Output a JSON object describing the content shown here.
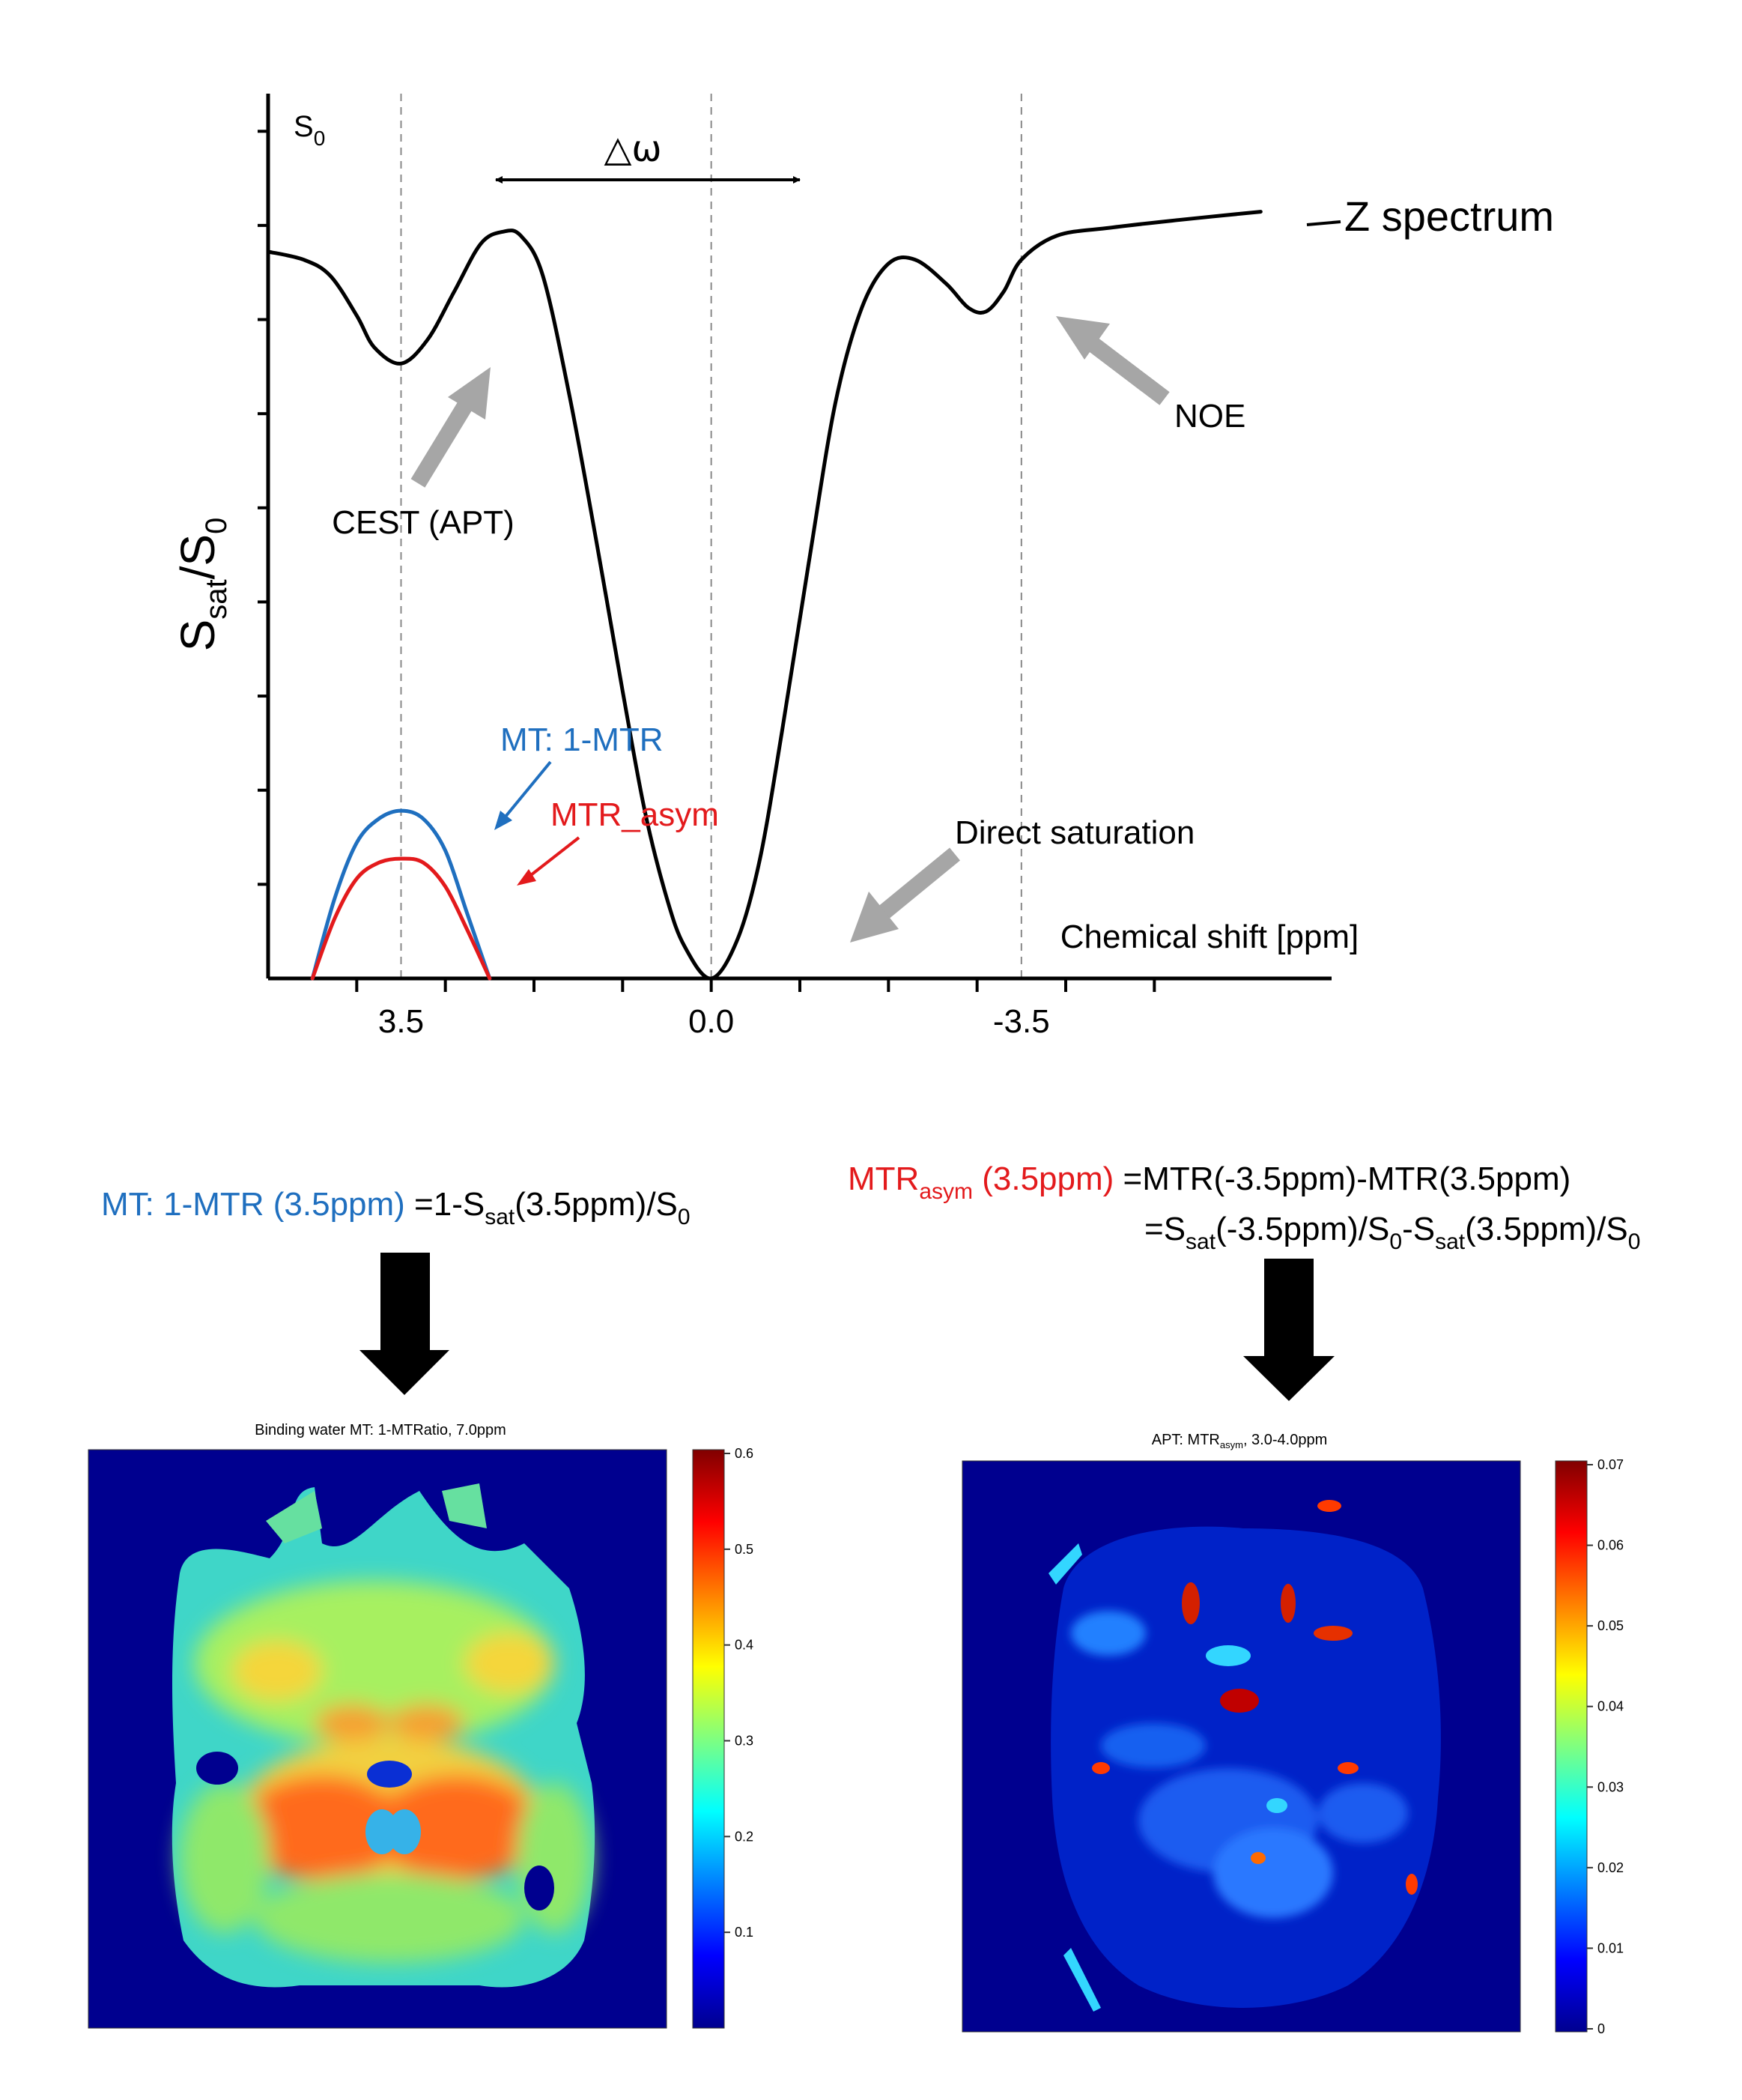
{
  "chart_data": {
    "type": "line",
    "title": "",
    "xlabel": "Chemical shift [ppm]",
    "ylabel_main": "S",
    "ylabel_sub1": "sat",
    "ylabel_mid": "/S",
    "ylabel_sub2": "0",
    "y_top_label_main": "S",
    "y_top_label_sub": "0",
    "x_axis_direction": "reversed",
    "xlim": [
      5.0,
      -7.0
    ],
    "ylim": [
      0,
      1.05
    ],
    "x_tick_labels": [
      {
        "x": 3.5,
        "label": "3.5"
      },
      {
        "x": 0.0,
        "label": "0.0"
      },
      {
        "x": -3.5,
        "label": "-3.5"
      }
    ],
    "x_ticks": [
      4.0,
      3.0,
      2.0,
      1.0,
      0.0,
      -1.0,
      -2.0,
      -3.0,
      -4.0,
      -5.0
    ],
    "reference_lines_ppm": [
      3.5,
      0.0,
      -3.5
    ],
    "delta_omega_label": "△ω",
    "series": [
      {
        "name": "Z spectrum",
        "color": "#000000",
        "x": [
          5.0,
          4.6,
          4.3,
          4.0,
          3.8,
          3.5,
          3.2,
          2.9,
          2.6,
          2.35,
          2.15,
          1.9,
          1.6,
          1.3,
          1.0,
          0.75,
          0.5,
          0.3,
          0.0,
          -0.3,
          -0.55,
          -0.8,
          -1.1,
          -1.4,
          -1.7,
          -2.0,
          -2.3,
          -2.65,
          -2.9,
          -3.1,
          -3.3,
          -3.5,
          -3.9,
          -4.5,
          -5.3,
          -6.2
        ],
        "y": [
          0.91,
          0.9,
          0.88,
          0.83,
          0.79,
          0.77,
          0.8,
          0.86,
          0.92,
          0.935,
          0.93,
          0.88,
          0.73,
          0.55,
          0.36,
          0.21,
          0.1,
          0.04,
          0.0,
          0.05,
          0.15,
          0.31,
          0.52,
          0.72,
          0.84,
          0.895,
          0.9,
          0.87,
          0.84,
          0.835,
          0.86,
          0.9,
          0.93,
          0.94,
          0.95,
          0.96
        ]
      },
      {
        "name": "MT: 1-MTR",
        "color": "#1f6fbf",
        "x": [
          4.5,
          4.25,
          4.0,
          3.75,
          3.5,
          3.25,
          3.0,
          2.75,
          2.5
        ],
        "y": [
          0.0,
          0.1,
          0.17,
          0.2,
          0.21,
          0.2,
          0.16,
          0.08,
          0.0
        ]
      },
      {
        "name": "MTR_asym",
        "color": "#e31a1c",
        "x": [
          4.5,
          4.25,
          4.0,
          3.75,
          3.5,
          3.25,
          3.0,
          2.75,
          2.5
        ],
        "y": [
          0.0,
          0.075,
          0.125,
          0.145,
          0.15,
          0.145,
          0.115,
          0.06,
          0.0
        ]
      }
    ],
    "annotations": {
      "z_spectrum": "Z spectrum",
      "cest": "CEST (APT)",
      "noe": "NOE",
      "direct_saturation": "Direct saturation",
      "mt_label": "MT: 1-MTR",
      "mtr_asym_label": "MTR_asym"
    }
  },
  "formulas": {
    "mt": {
      "lhs": "MT: 1-MTR (3.5ppm)",
      "rhs_a": " =1-S",
      "rhs_sub": "sat",
      "rhs_b": "(3.5ppm)/S",
      "rhs_sub2": "0"
    },
    "mtr_asym": {
      "lhs_main": "MTR",
      "lhs_sub": "asym",
      "lhs_tail": " (3.5ppm)",
      "line1": " =MTR(-3.5ppm)-MTR(3.5ppm)",
      "line2_a": "=S",
      "line2_sub1": "sat",
      "line2_b": "(-3.5ppm)/S",
      "line2_sub2": "0",
      "line2_c": "-S",
      "line2_sub3": "sat",
      "line2_d": "(3.5ppm)/S",
      "line2_sub4": "0"
    }
  },
  "maps": {
    "left": {
      "title": "Binding water MT: 1-MTRatio, 7.0ppm",
      "colorbar_ticks": [
        "0.6",
        "0.5",
        "0.4",
        "0.3",
        "0.2",
        "0.1"
      ]
    },
    "right": {
      "title_a": "APT: MTR",
      "title_sub": "asym",
      "title_b": ", 3.0-4.0ppm",
      "colorbar_ticks": [
        "0.07",
        "0.06",
        "0.05",
        "0.04",
        "0.03",
        "0.02",
        "0.01",
        "0"
      ]
    }
  },
  "colors": {
    "blue": "#1f6fbf",
    "red": "#e31a1c",
    "gray_arrow": "#a6a6a6",
    "map_background": "#00008f"
  }
}
